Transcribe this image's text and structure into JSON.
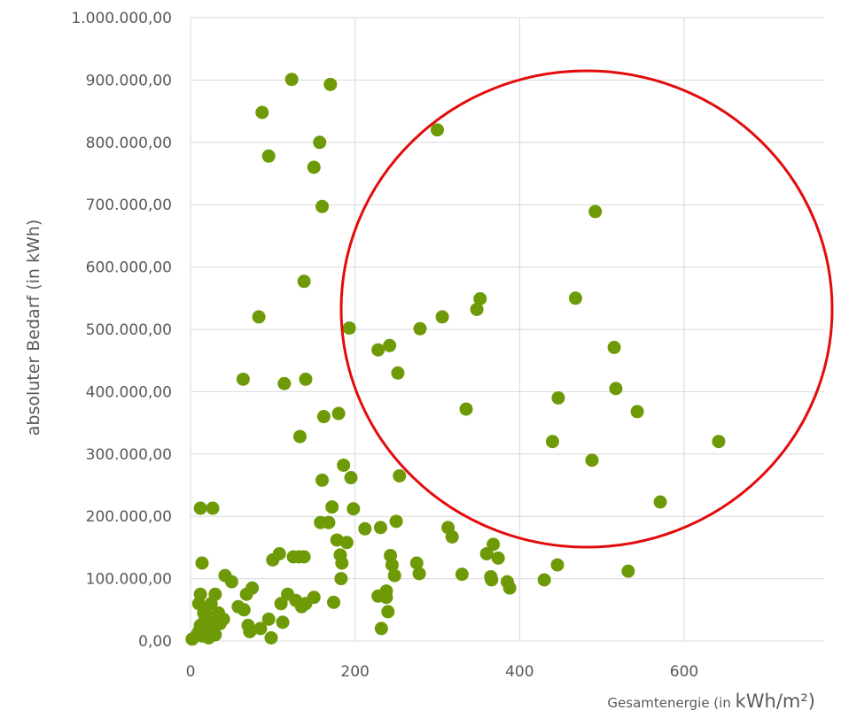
{
  "chart_data": {
    "type": "scatter",
    "xlabel_prefix": "Gesamtenergie (in ",
    "xlabel_unit": "kWh/m²)",
    "ylabel": "absoluter Bedarf (in kWh)",
    "xlim": [
      0,
      750
    ],
    "ylim": [
      0,
      1000000
    ],
    "x_ticks": [
      0,
      200,
      400,
      600
    ],
    "x_tick_labels": [
      "0",
      "200",
      "400",
      "600"
    ],
    "y_ticks": [
      0,
      100000,
      200000,
      300000,
      400000,
      500000,
      600000,
      700000,
      800000,
      900000,
      1000000
    ],
    "y_tick_labels": [
      "0,00",
      "100.000,00",
      "200.000,00",
      "300.000,00",
      "400.000,00",
      "500.000,00",
      "600.000,00",
      "700.000,00",
      "800.000,00",
      "900.000,00",
      "1.000.000,00"
    ],
    "grid": true,
    "marker_color": "#6e9a07",
    "annotation": {
      "shape": "circle",
      "color": "#e30b0b",
      "center": [
        595,
        490000
      ],
      "radius_x": 298,
      "radius_y": 575000
    },
    "points": [
      [
        2,
        3000
      ],
      [
        8,
        10000
      ],
      [
        10,
        15000
      ],
      [
        12,
        25000
      ],
      [
        14,
        8000
      ],
      [
        16,
        30000
      ],
      [
        18,
        12000
      ],
      [
        20,
        40000
      ],
      [
        22,
        5000
      ],
      [
        24,
        20000
      ],
      [
        26,
        35000
      ],
      [
        28,
        18000
      ],
      [
        30,
        10000
      ],
      [
        32,
        28000
      ],
      [
        34,
        45000
      ],
      [
        10,
        60000
      ],
      [
        12,
        75000
      ],
      [
        14,
        125000
      ],
      [
        16,
        45000
      ],
      [
        18,
        50000
      ],
      [
        30,
        75000
      ],
      [
        25,
        60000
      ],
      [
        36,
        28000
      ],
      [
        40,
        35000
      ],
      [
        12,
        213000
      ],
      [
        27,
        213000
      ],
      [
        42,
        105000
      ],
      [
        50,
        95000
      ],
      [
        58,
        55000
      ],
      [
        65,
        50000
      ],
      [
        70,
        25000
      ],
      [
        72,
        15000
      ],
      [
        75,
        85000
      ],
      [
        68,
        75000
      ],
      [
        85,
        20000
      ],
      [
        95,
        35000
      ],
      [
        98,
        5000
      ],
      [
        100,
        130000
      ],
      [
        108,
        140000
      ],
      [
        110,
        60000
      ],
      [
        112,
        30000
      ],
      [
        118,
        75000
      ],
      [
        125,
        135000
      ],
      [
        128,
        65000
      ],
      [
        132,
        135000
      ],
      [
        135,
        55000
      ],
      [
        138,
        135000
      ],
      [
        140,
        60000
      ],
      [
        150,
        70000
      ],
      [
        158,
        190000
      ],
      [
        160,
        258000
      ],
      [
        162,
        360000
      ],
      [
        168,
        190000
      ],
      [
        172,
        215000
      ],
      [
        174,
        62000
      ],
      [
        178,
        162000
      ],
      [
        180,
        365000
      ],
      [
        182,
        138000
      ],
      [
        183,
        100000
      ],
      [
        184,
        125000
      ],
      [
        186,
        282000
      ],
      [
        190,
        158000
      ],
      [
        195,
        262000
      ],
      [
        198,
        212000
      ],
      [
        212,
        180000
      ],
      [
        64,
        420000
      ],
      [
        83,
        520000
      ],
      [
        87,
        848000
      ],
      [
        95,
        778000
      ],
      [
        114,
        413000
      ],
      [
        123,
        901000
      ],
      [
        133,
        328000
      ],
      [
        138,
        577000
      ],
      [
        140,
        420000
      ],
      [
        150,
        760000
      ],
      [
        157,
        800000
      ],
      [
        160,
        697000
      ],
      [
        170,
        893000
      ],
      [
        193,
        502000
      ],
      [
        228,
        72000
      ],
      [
        231,
        182000
      ],
      [
        232,
        20000
      ],
      [
        238,
        70000
      ],
      [
        240,
        47000
      ],
      [
        243,
        137000
      ],
      [
        245,
        122000
      ],
      [
        248,
        105000
      ],
      [
        250,
        192000
      ],
      [
        254,
        265000
      ],
      [
        238,
        80000
      ],
      [
        275,
        125000
      ],
      [
        278,
        108000
      ],
      [
        313,
        182000
      ],
      [
        318,
        167000
      ],
      [
        330,
        107000
      ],
      [
        360,
        140000
      ],
      [
        365,
        103000
      ],
      [
        366,
        98000
      ],
      [
        368,
        155000
      ],
      [
        374,
        133000
      ],
      [
        385,
        95000
      ],
      [
        388,
        85000
      ],
      [
        430,
        98000
      ],
      [
        446,
        122000
      ],
      [
        532,
        112000
      ],
      [
        228,
        467000
      ],
      [
        242,
        474000
      ],
      [
        252,
        430000
      ],
      [
        279,
        501000
      ],
      [
        300,
        820000
      ],
      [
        306,
        520000
      ],
      [
        335,
        372000
      ],
      [
        348,
        532000
      ],
      [
        352,
        549000
      ],
      [
        440,
        320000
      ],
      [
        447,
        390000
      ],
      [
        468,
        550000
      ],
      [
        488,
        290000
      ],
      [
        492,
        689000
      ],
      [
        515,
        471000
      ],
      [
        517,
        405000
      ],
      [
        543,
        368000
      ],
      [
        571,
        223000
      ],
      [
        642,
        320000
      ]
    ]
  }
}
